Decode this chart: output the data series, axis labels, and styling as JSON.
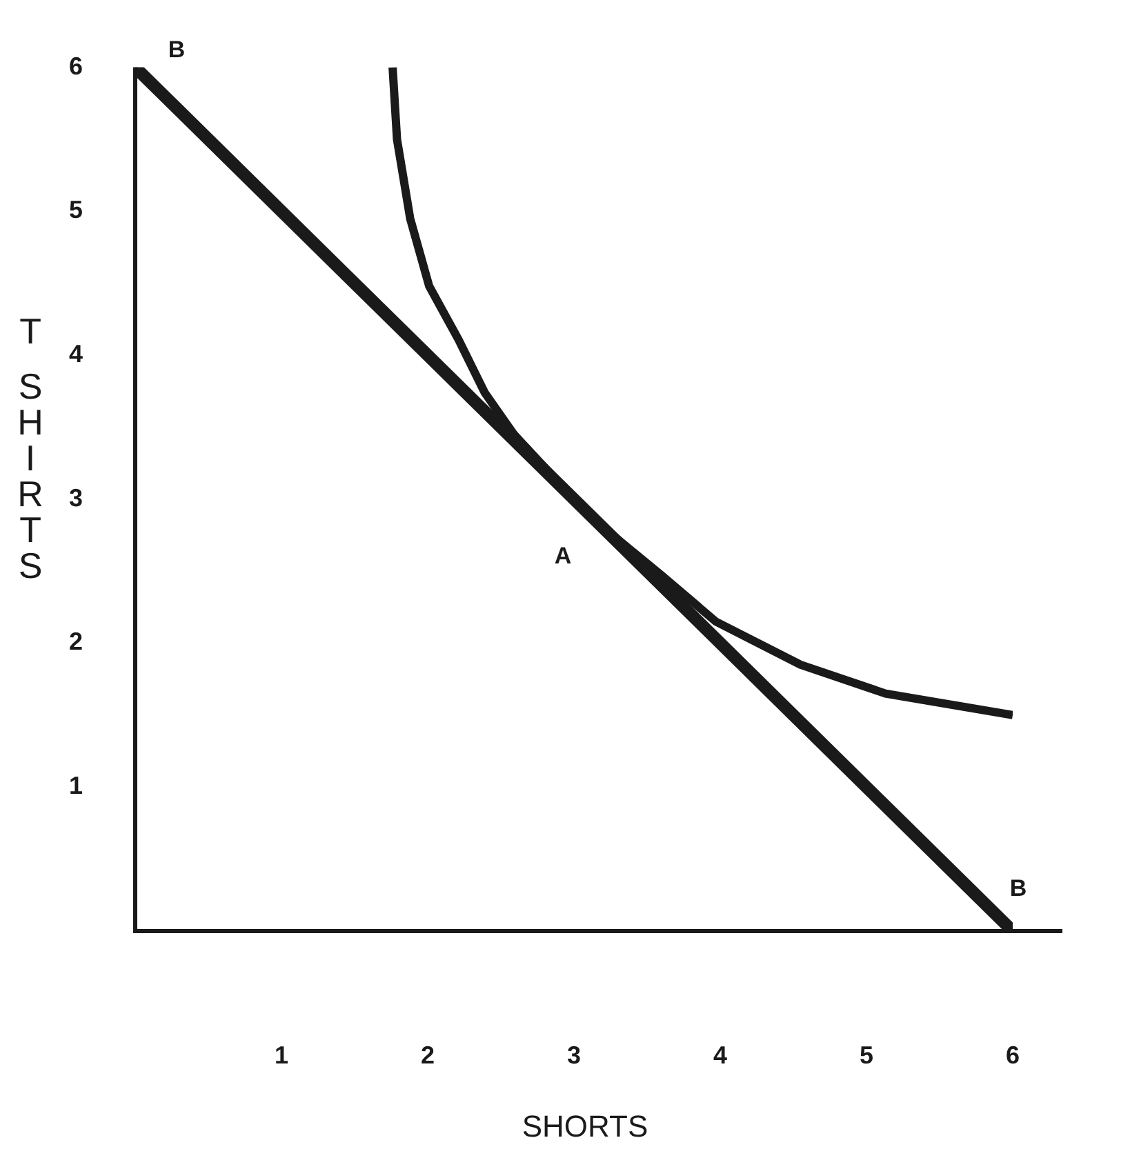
{
  "chart_data": {
    "type": "line",
    "xlabel": "SHORTS",
    "ylabel": "T SHIRTS",
    "xlim": [
      0,
      6
    ],
    "ylim": [
      0,
      6
    ],
    "xticks": [
      1,
      2,
      3,
      4,
      5,
      6
    ],
    "yticks": [
      1,
      2,
      3,
      4,
      5,
      6
    ],
    "grid": false,
    "legend": false,
    "marker": "none",
    "line_style": "solid",
    "series": [
      {
        "color": "#1a1a1a",
        "x": [
          0,
          6
        ],
        "values": [
          6,
          0
        ]
      },
      {
        "color": "#1a1a1a",
        "x": [
          1.76,
          1.79,
          1.88,
          2.01,
          2.21,
          2.39,
          2.59,
          2.8,
          3.0,
          3.3,
          3.6,
          3.97,
          4.55,
          5.13,
          6.0
        ],
        "values": [
          6.0,
          5.5,
          4.95,
          4.48,
          4.11,
          3.74,
          3.45,
          3.22,
          3.0,
          2.72,
          2.47,
          2.15,
          1.85,
          1.65,
          1.5
        ]
      }
    ],
    "annotations": [
      {
        "text": "A",
        "x": 3,
        "y": 3
      },
      {
        "text": "B",
        "x": 0,
        "y": 6
      },
      {
        "text": "B",
        "x": 6,
        "y": 0
      }
    ]
  }
}
